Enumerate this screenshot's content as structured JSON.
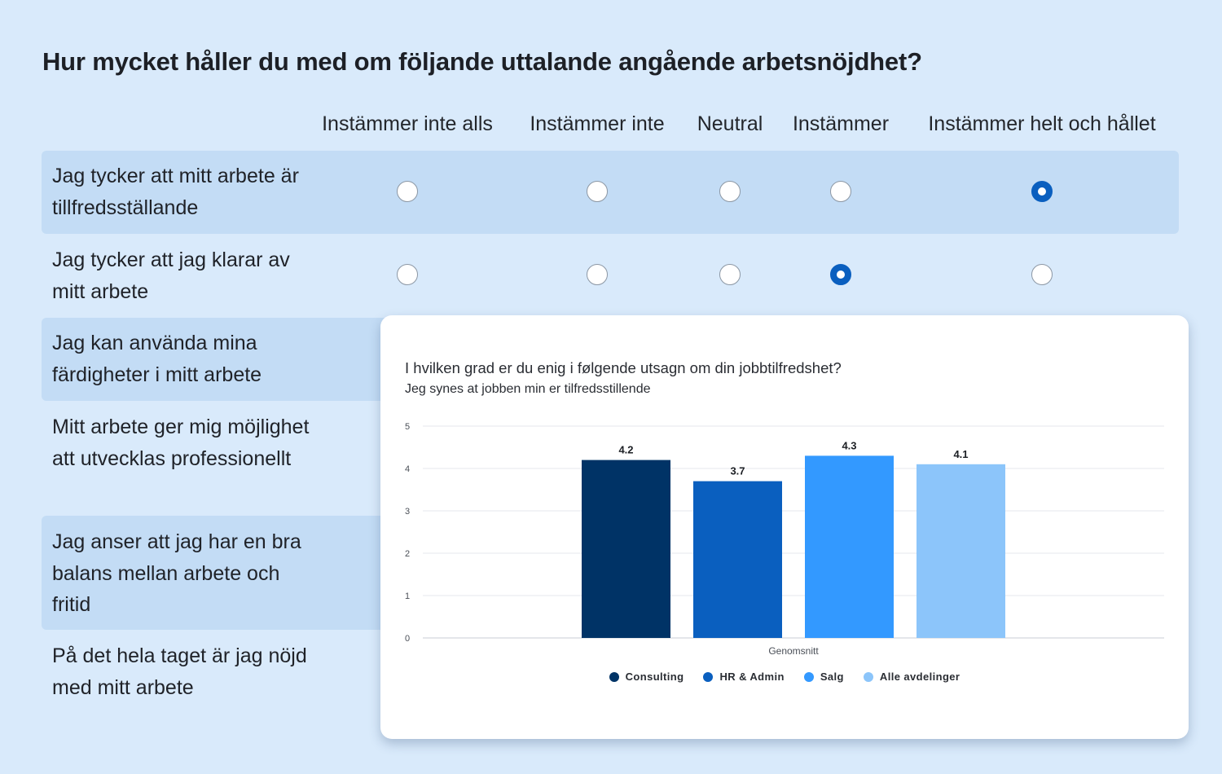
{
  "question": {
    "title": "Hur mycket håller du med om följande uttalande angående arbetsnöjdhet?"
  },
  "columns": [
    "Instämmer inte alls",
    "Instämmer inte",
    "Neutral",
    "Instämmer",
    "Instämmer helt och hållet"
  ],
  "rows": [
    {
      "label": "Jag tycker att mitt arbete är tillfredsställande",
      "selected": 4
    },
    {
      "label": "Jag tycker att jag klarar av mitt arbete",
      "selected": 3
    },
    {
      "label": "Jag kan använda mina färdigheter i mitt arbete",
      "selected": null
    },
    {
      "label": "Mitt arbete ger mig möjlighet att utvecklas professionellt",
      "selected": null
    },
    {
      "label": "Jag anser att jag har en bra balans mellan arbete och fritid",
      "selected": null
    },
    {
      "label": "På det hela taget är jag nöjd med mitt arbete",
      "selected": null
    }
  ],
  "colors": {
    "background": "#d9eafb",
    "row_shade": "#c3dcf5",
    "radio_selected": "#0a5fbf"
  },
  "chart_data": {
    "type": "bar",
    "title": "I hvilken grad er du enig i følgende utsagn om din jobbtilfredshet?",
    "subtitle": "Jeg synes at jobben min er tilfredsstillende",
    "categories": [
      "Genomsnitt"
    ],
    "series": [
      {
        "name": "Consulting",
        "values": [
          4.2
        ],
        "color": "#003366"
      },
      {
        "name": "HR & Admin",
        "values": [
          3.7
        ],
        "color": "#0a5fbf"
      },
      {
        "name": "Salg",
        "values": [
          4.3
        ],
        "color": "#3399ff"
      },
      {
        "name": "Alle avdelinger",
        "values": [
          4.1
        ],
        "color": "#8cc5fa"
      }
    ],
    "ylim": [
      0,
      5
    ],
    "yticks": [
      "0",
      "1",
      "2",
      "3",
      "4",
      "5"
    ],
    "grid": true,
    "legend": "bottom"
  }
}
